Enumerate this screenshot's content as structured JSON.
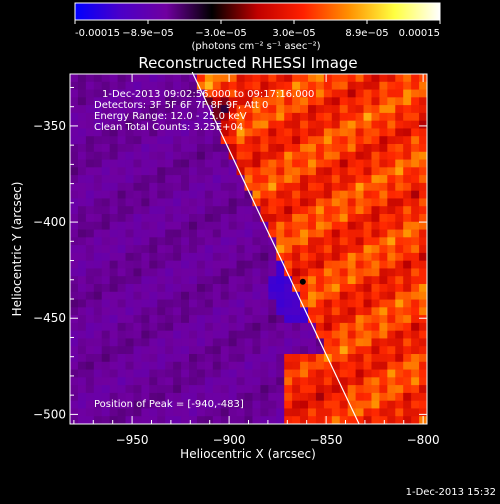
{
  "colorbar": {
    "tick_labels": [
      "-0.00015",
      "−8.9e−05",
      "−3.0e−05",
      "3.0e−05",
      "8.9e−05",
      "0.00015"
    ],
    "unit_label": "(photons cm⁻² s⁻¹ asec⁻²)",
    "colors": [
      "#0000ff",
      "#4b00c8",
      "#7000a0",
      "#000000",
      "#c00000",
      "#ff2000",
      "#ff9000",
      "#ffff40",
      "#ffffff"
    ]
  },
  "chart_data": {
    "type": "heatmap",
    "title": "Reconstructed RHESSI Image",
    "xlabel": "Heliocentric X (arcsec)",
    "ylabel": "Heliocentric Y (arcsec)",
    "xlim": [
      -982,
      -798
    ],
    "ylim": [
      -505,
      -323
    ],
    "x_ticks": [
      -950,
      -900,
      -850,
      -800
    ],
    "y_ticks": [
      -350,
      -400,
      -450,
      -500
    ],
    "x_tick_labels": [
      "−950",
      "−900",
      "−850",
      "−800"
    ],
    "y_tick_labels": [
      "−350",
      "−400",
      "−450",
      "−500"
    ],
    "annotations": [
      "1-Dec-2013 09:02:56.000 to 09:17:16.000",
      "Detectors: 3F 5F 6F 7F 8F 9F, Att 0",
      "Energy Range: 12.0 - 25.0 keV",
      "Clean     Total Counts: 3.25E+04"
    ],
    "peak_label": "Position of Peak = [-940,-483]",
    "limb_line": [
      [
        -919,
        -322
      ],
      [
        -833,
        -505
      ]
    ],
    "center_marker": [
      -862,
      -431
    ],
    "color_range": [
      -0.00015,
      0.00015
    ],
    "grid": false
  },
  "footer": {
    "timestamp": "1-Dec-2013 15:32"
  }
}
